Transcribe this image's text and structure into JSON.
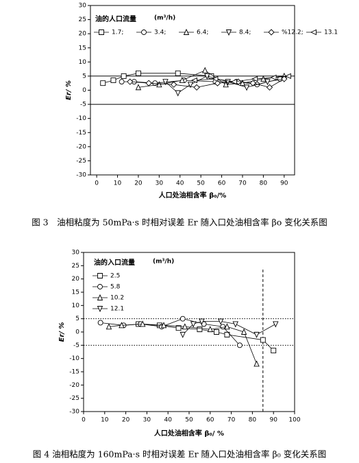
{
  "chart_data": [
    {
      "type": "line",
      "legend_title": "油的人口流量",
      "legend_unit": "(m³/h)",
      "legend_layout": "row",
      "xlabel": "人口处油相含率 β₀/%",
      "ylabel": "Er/ %",
      "caption": "图 3　油相粘度为 50mPa·s 时相对误差 Er 随入口处油相含率 βo 变化关系图",
      "xlim": [
        -3,
        95
      ],
      "xticks": [
        0,
        10,
        20,
        30,
        40,
        50,
        60,
        70,
        80,
        90
      ],
      "ylim": [
        -30,
        30
      ],
      "yticks": [
        -30,
        -25,
        -20,
        -15,
        -10,
        -5,
        0,
        5,
        10,
        15,
        20,
        25,
        30
      ],
      "hlines": [
        5,
        -5
      ],
      "hline_style": "solid",
      "series": [
        {
          "name": "1.7;",
          "color": "#000",
          "marker": "square",
          "x": [
            3,
            8,
            13,
            20,
            39,
            55
          ],
          "values": [
            2.5,
            3.5,
            5,
            6,
            6,
            5
          ]
        },
        {
          "name": "3.4;",
          "color": "#000",
          "marker": "circle",
          "x": [
            12,
            18,
            28,
            42,
            57,
            67,
            77,
            88
          ],
          "values": [
            3,
            3,
            2.5,
            3.5,
            3,
            3,
            2,
            4
          ]
        },
        {
          "name": "6.4;",
          "color": "#000",
          "marker": "triangle-up",
          "x": [
            20,
            30,
            41,
            52,
            62,
            70,
            80,
            90
          ],
          "values": [
            1,
            2,
            3.5,
            7,
            2,
            2.5,
            4,
            5
          ]
        },
        {
          "name": "8.4;",
          "color": "#000",
          "marker": "triangle-down",
          "x": [
            33,
            39,
            45,
            53,
            63,
            72,
            82,
            90
          ],
          "values": [
            3,
            -1,
            2,
            5,
            3,
            1,
            3,
            4
          ]
        },
        {
          "name": "%12.2;",
          "color": "#000",
          "marker": "diamond",
          "x": [
            16,
            25,
            37,
            48,
            58,
            68,
            75,
            83,
            90
          ],
          "values": [
            3,
            2.5,
            2,
            1,
            2.5,
            3,
            2.5,
            1,
            4
          ]
        },
        {
          "name": "13.1",
          "color": "#000",
          "marker": "triangle-left",
          "x": [
            47,
            57,
            66,
            76,
            85,
            92
          ],
          "values": [
            3.5,
            4,
            3,
            4,
            4.5,
            5
          ]
        }
      ]
    },
    {
      "type": "line",
      "legend_title": "油的入口流量",
      "legend_unit": "(m³/h)",
      "legend_layout": "column",
      "xlabel": "人口处油相含率 β₀/ %",
      "ylabel": "Er/ %",
      "caption": "图 4  油相粘度为 160mPa·s 时相对误差 Er 随入口处油相含率 β₀ 变化关系图",
      "xlim": [
        0,
        100
      ],
      "xticks": [
        0,
        10,
        20,
        30,
        40,
        50,
        60,
        70,
        80,
        90,
        100
      ],
      "ylim": [
        -30,
        30
      ],
      "yticks": [
        -30,
        -25,
        -20,
        -15,
        -10,
        -5,
        0,
        5,
        10,
        15,
        20,
        25,
        30
      ],
      "hlines": [
        5,
        -5
      ],
      "hline_style": "dotted",
      "vlines": [
        85
      ],
      "vline_style": "dashed",
      "series": [
        {
          "name": "2.5",
          "color": "#000",
          "marker": "square",
          "x": [
            26,
            36,
            45,
            55,
            63,
            68,
            85,
            90
          ],
          "values": [
            3,
            2.5,
            1.5,
            1,
            0,
            -1,
            -3,
            -7
          ]
        },
        {
          "name": "5.8",
          "color": "#000",
          "marker": "circle",
          "x": [
            8,
            19,
            27,
            37,
            47,
            57,
            66,
            74
          ],
          "values": [
            3.5,
            2.5,
            3,
            2,
            5,
            3,
            2,
            -5
          ]
        },
        {
          "name": "10.2",
          "color": "#000",
          "marker": "triangle-up",
          "x": [
            12,
            18,
            28,
            38,
            48,
            60,
            68,
            76,
            82
          ],
          "values": [
            2,
            2.5,
            3,
            2.5,
            2,
            1,
            2,
            0,
            -12
          ]
        },
        {
          "name": "12.1",
          "color": "#000",
          "marker": "triangle-down",
          "x": [
            47,
            52,
            56,
            65,
            72,
            82,
            91
          ],
          "values": [
            -1,
            3,
            4,
            4,
            3,
            -1,
            3
          ]
        }
      ]
    }
  ]
}
